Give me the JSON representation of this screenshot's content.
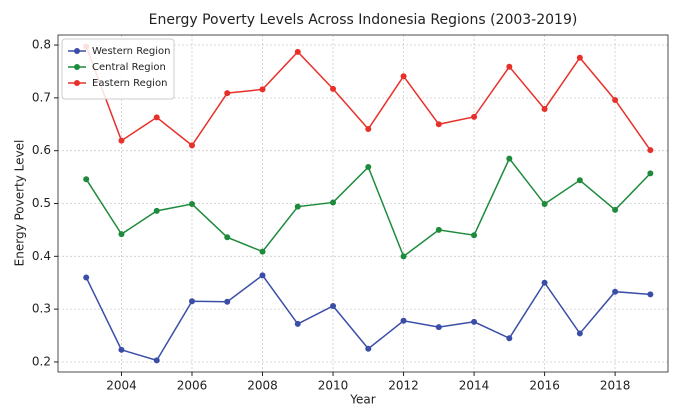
{
  "chart_data": {
    "type": "line",
    "title": "Energy Poverty Levels Across Indonesia Regions (2003-2019)",
    "x_label": "Year",
    "y_label": "Energy Poverty Level",
    "x": [
      2003,
      2004,
      2005,
      2006,
      2007,
      2008,
      2009,
      2010,
      2011,
      2012,
      2013,
      2014,
      2015,
      2016,
      2017,
      2018,
      2019
    ],
    "series": [
      {
        "name": "Western Region",
        "color": "#3a4ea8",
        "values": [
          0.36,
          0.223,
          0.203,
          0.315,
          0.314,
          0.364,
          0.272,
          0.306,
          0.225,
          0.278,
          0.266,
          0.276,
          0.245,
          0.35,
          0.254,
          0.333,
          0.328
        ]
      },
      {
        "name": "Central Region",
        "color": "#1e8a3c",
        "values": [
          0.546,
          0.442,
          0.486,
          0.499,
          0.436,
          0.409,
          0.494,
          0.502,
          0.569,
          0.4,
          0.45,
          0.44,
          0.585,
          0.499,
          0.544,
          0.488,
          0.557
        ]
      },
      {
        "name": "Eastern Region",
        "color": "#e8302a",
        "values": [
          0.797,
          0.619,
          0.663,
          0.61,
          0.709,
          0.716,
          0.787,
          0.717,
          0.641,
          0.741,
          0.65,
          0.664,
          0.759,
          0.679,
          0.776,
          0.696,
          0.601
        ]
      }
    ],
    "xlim": [
      2002.2,
      2019.5
    ],
    "xticks": [
      2004,
      2006,
      2008,
      2010,
      2012,
      2014,
      2016,
      2018
    ],
    "ylim": [
      0.181,
      0.819
    ],
    "yticks": [
      0.2,
      0.3,
      0.4,
      0.5,
      0.6,
      0.7,
      0.8
    ],
    "grid": true,
    "legend": "upper-left"
  }
}
